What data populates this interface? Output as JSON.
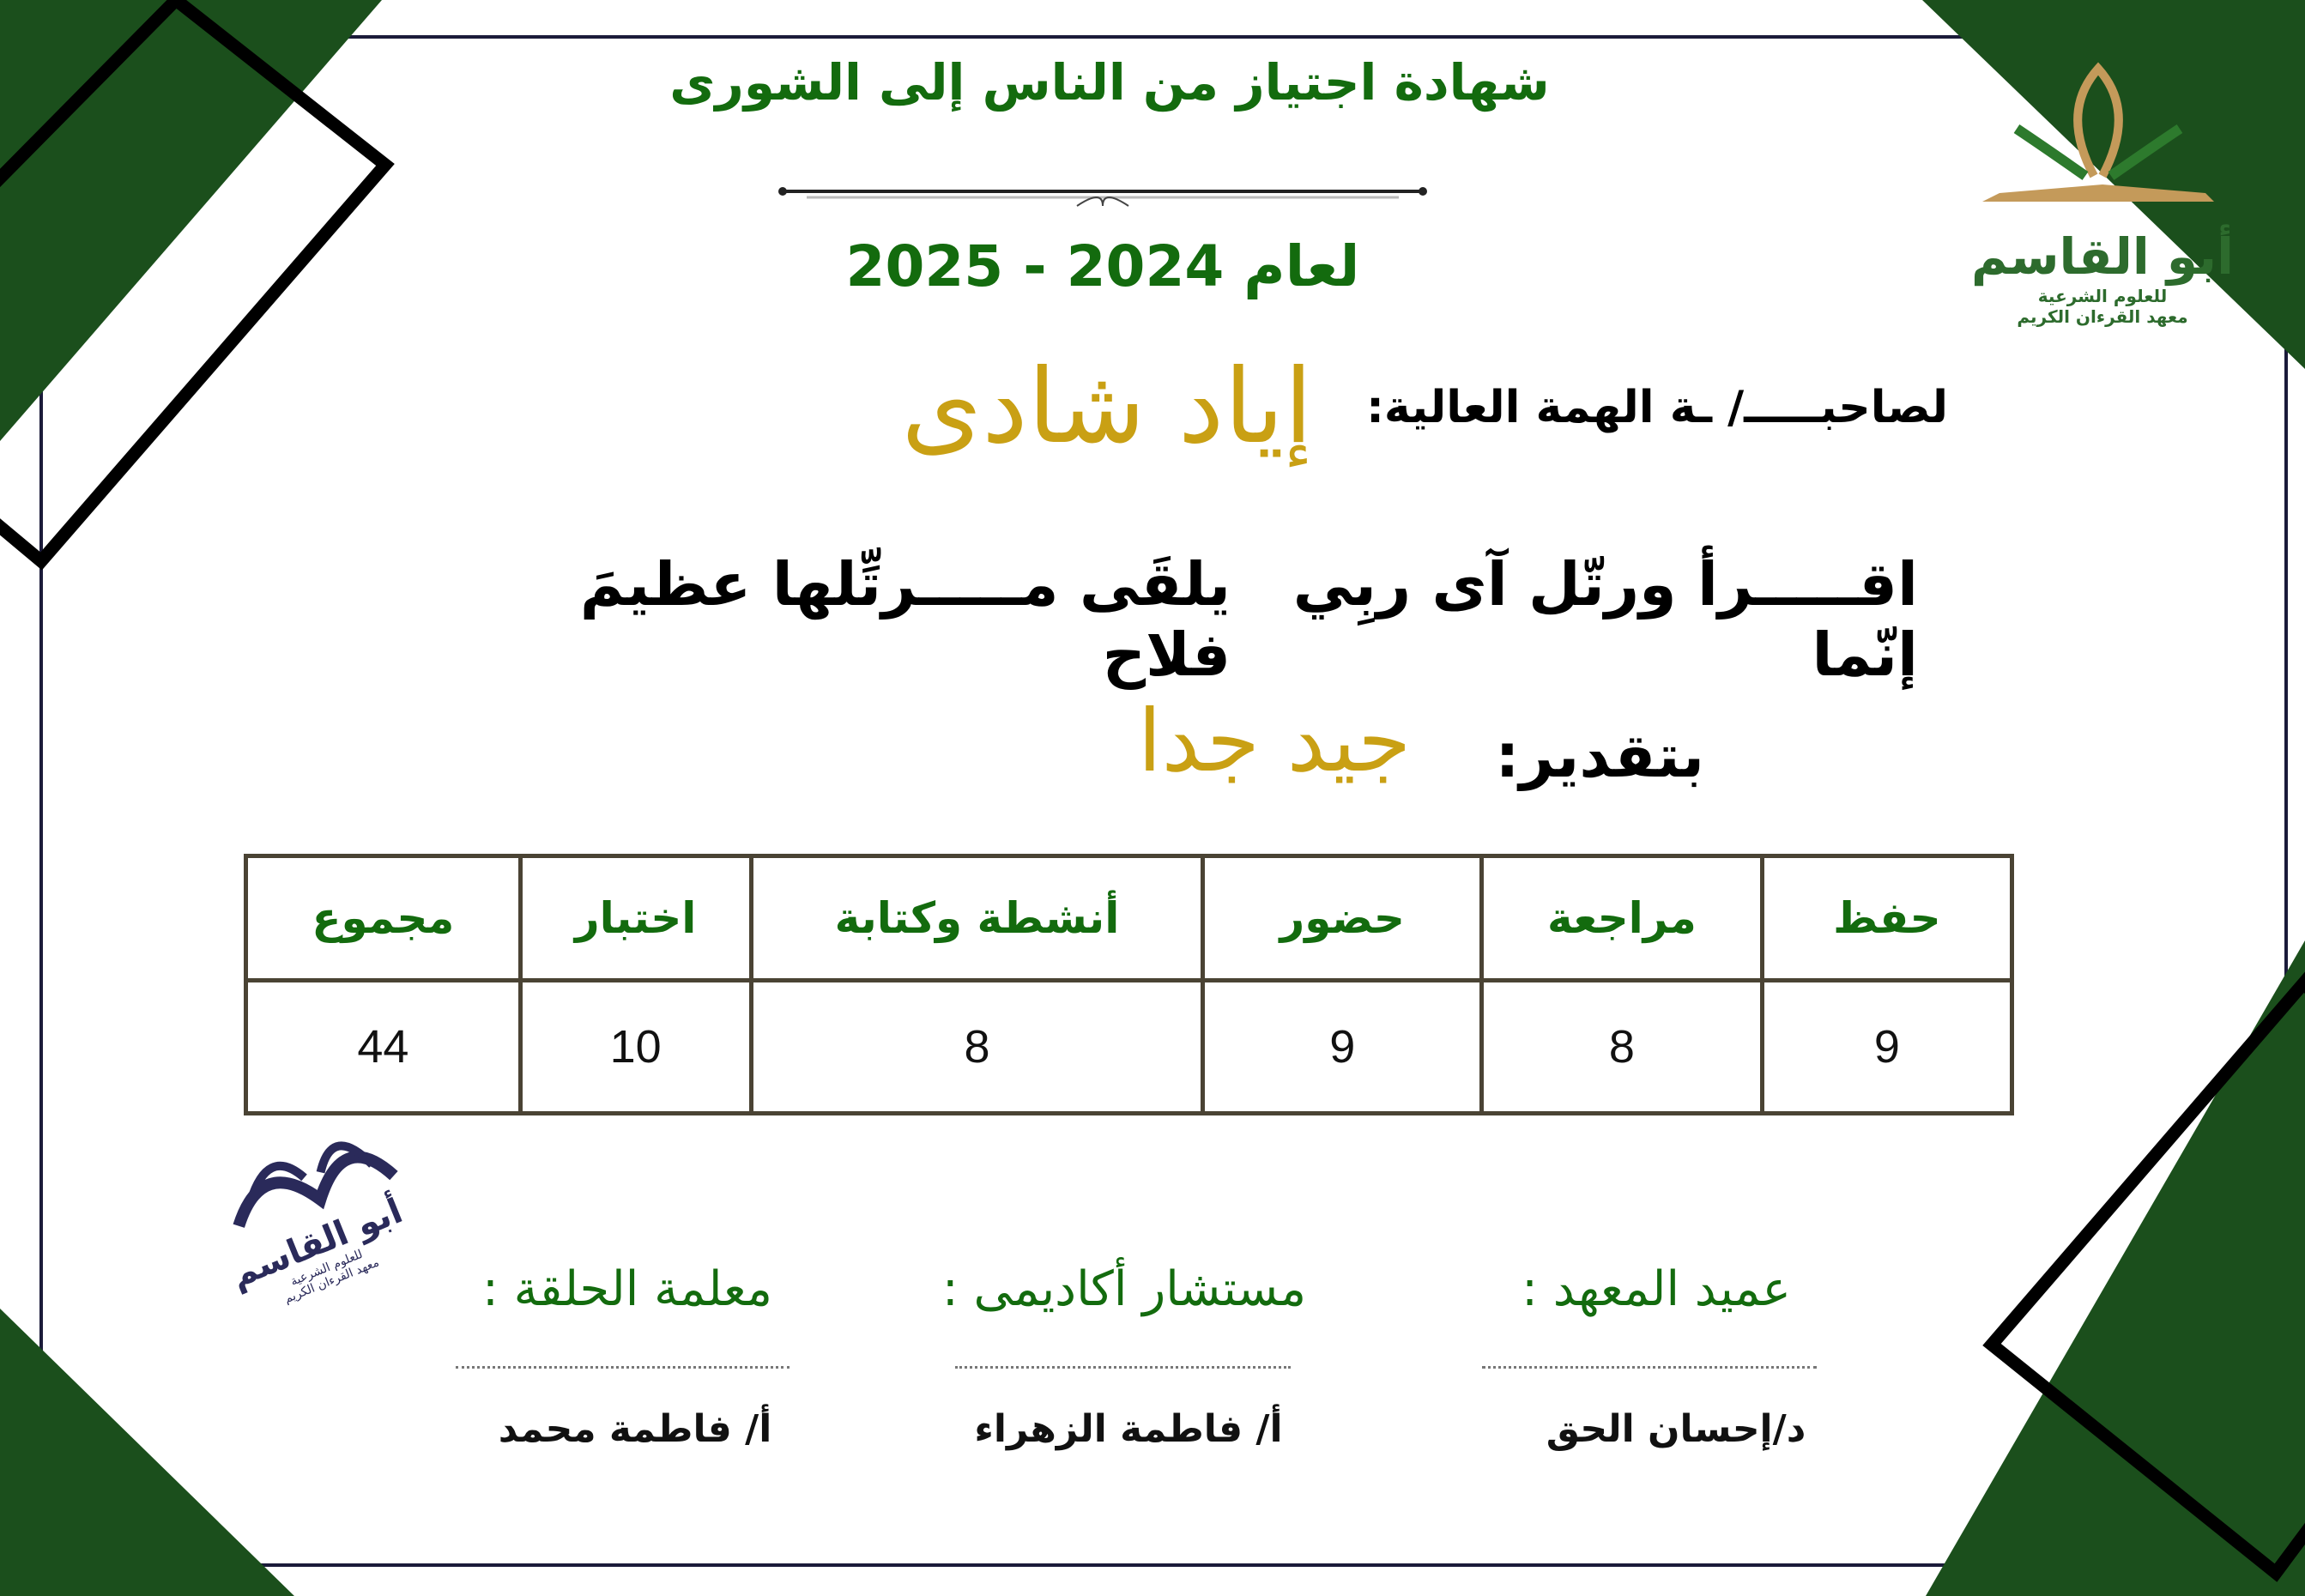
{
  "certificate": {
    "title": "شهادة اجتياز من الناس إلى الشورى",
    "year": "لعام 2024 - 2025",
    "recipient_label": "لصاحبـــــ/ ـة الهمة العالية:",
    "recipient_name": "إياد شادى",
    "verse_part1": "اقـــــرأ ورتّل آى ربِي إنّما",
    "verse_part2": "يلقَى مـــــرتِّلها عظيمَ فلاح",
    "grade_label": "بتقدير:",
    "grade_value": "جيد جدا"
  },
  "logo": {
    "name": "أبو القاسم",
    "line1": "للعلوم الشرعية",
    "line2": "معهد القرءان الكريم"
  },
  "scores": {
    "headers": [
      "حفظ",
      "مراجعة",
      "حضور",
      "أنشطة وكتابة",
      "اختبار",
      "مجموع"
    ],
    "values": [
      "9",
      "8",
      "9",
      "8",
      "10",
      "44"
    ]
  },
  "signatures": [
    {
      "title": "عميد المعهد :",
      "name": "د/إحسان الحق"
    },
    {
      "title": "مستشار أكاديمى :",
      "name": "أ/ فاطمة الزهراء"
    },
    {
      "title": "معلمة الحلقة :",
      "name": "أ/ فاطمة محمد"
    }
  ],
  "colors": {
    "green": "#136b0e",
    "dark_green": "#1b4f1c",
    "gold": "#c9a014",
    "frame": "#000000"
  }
}
